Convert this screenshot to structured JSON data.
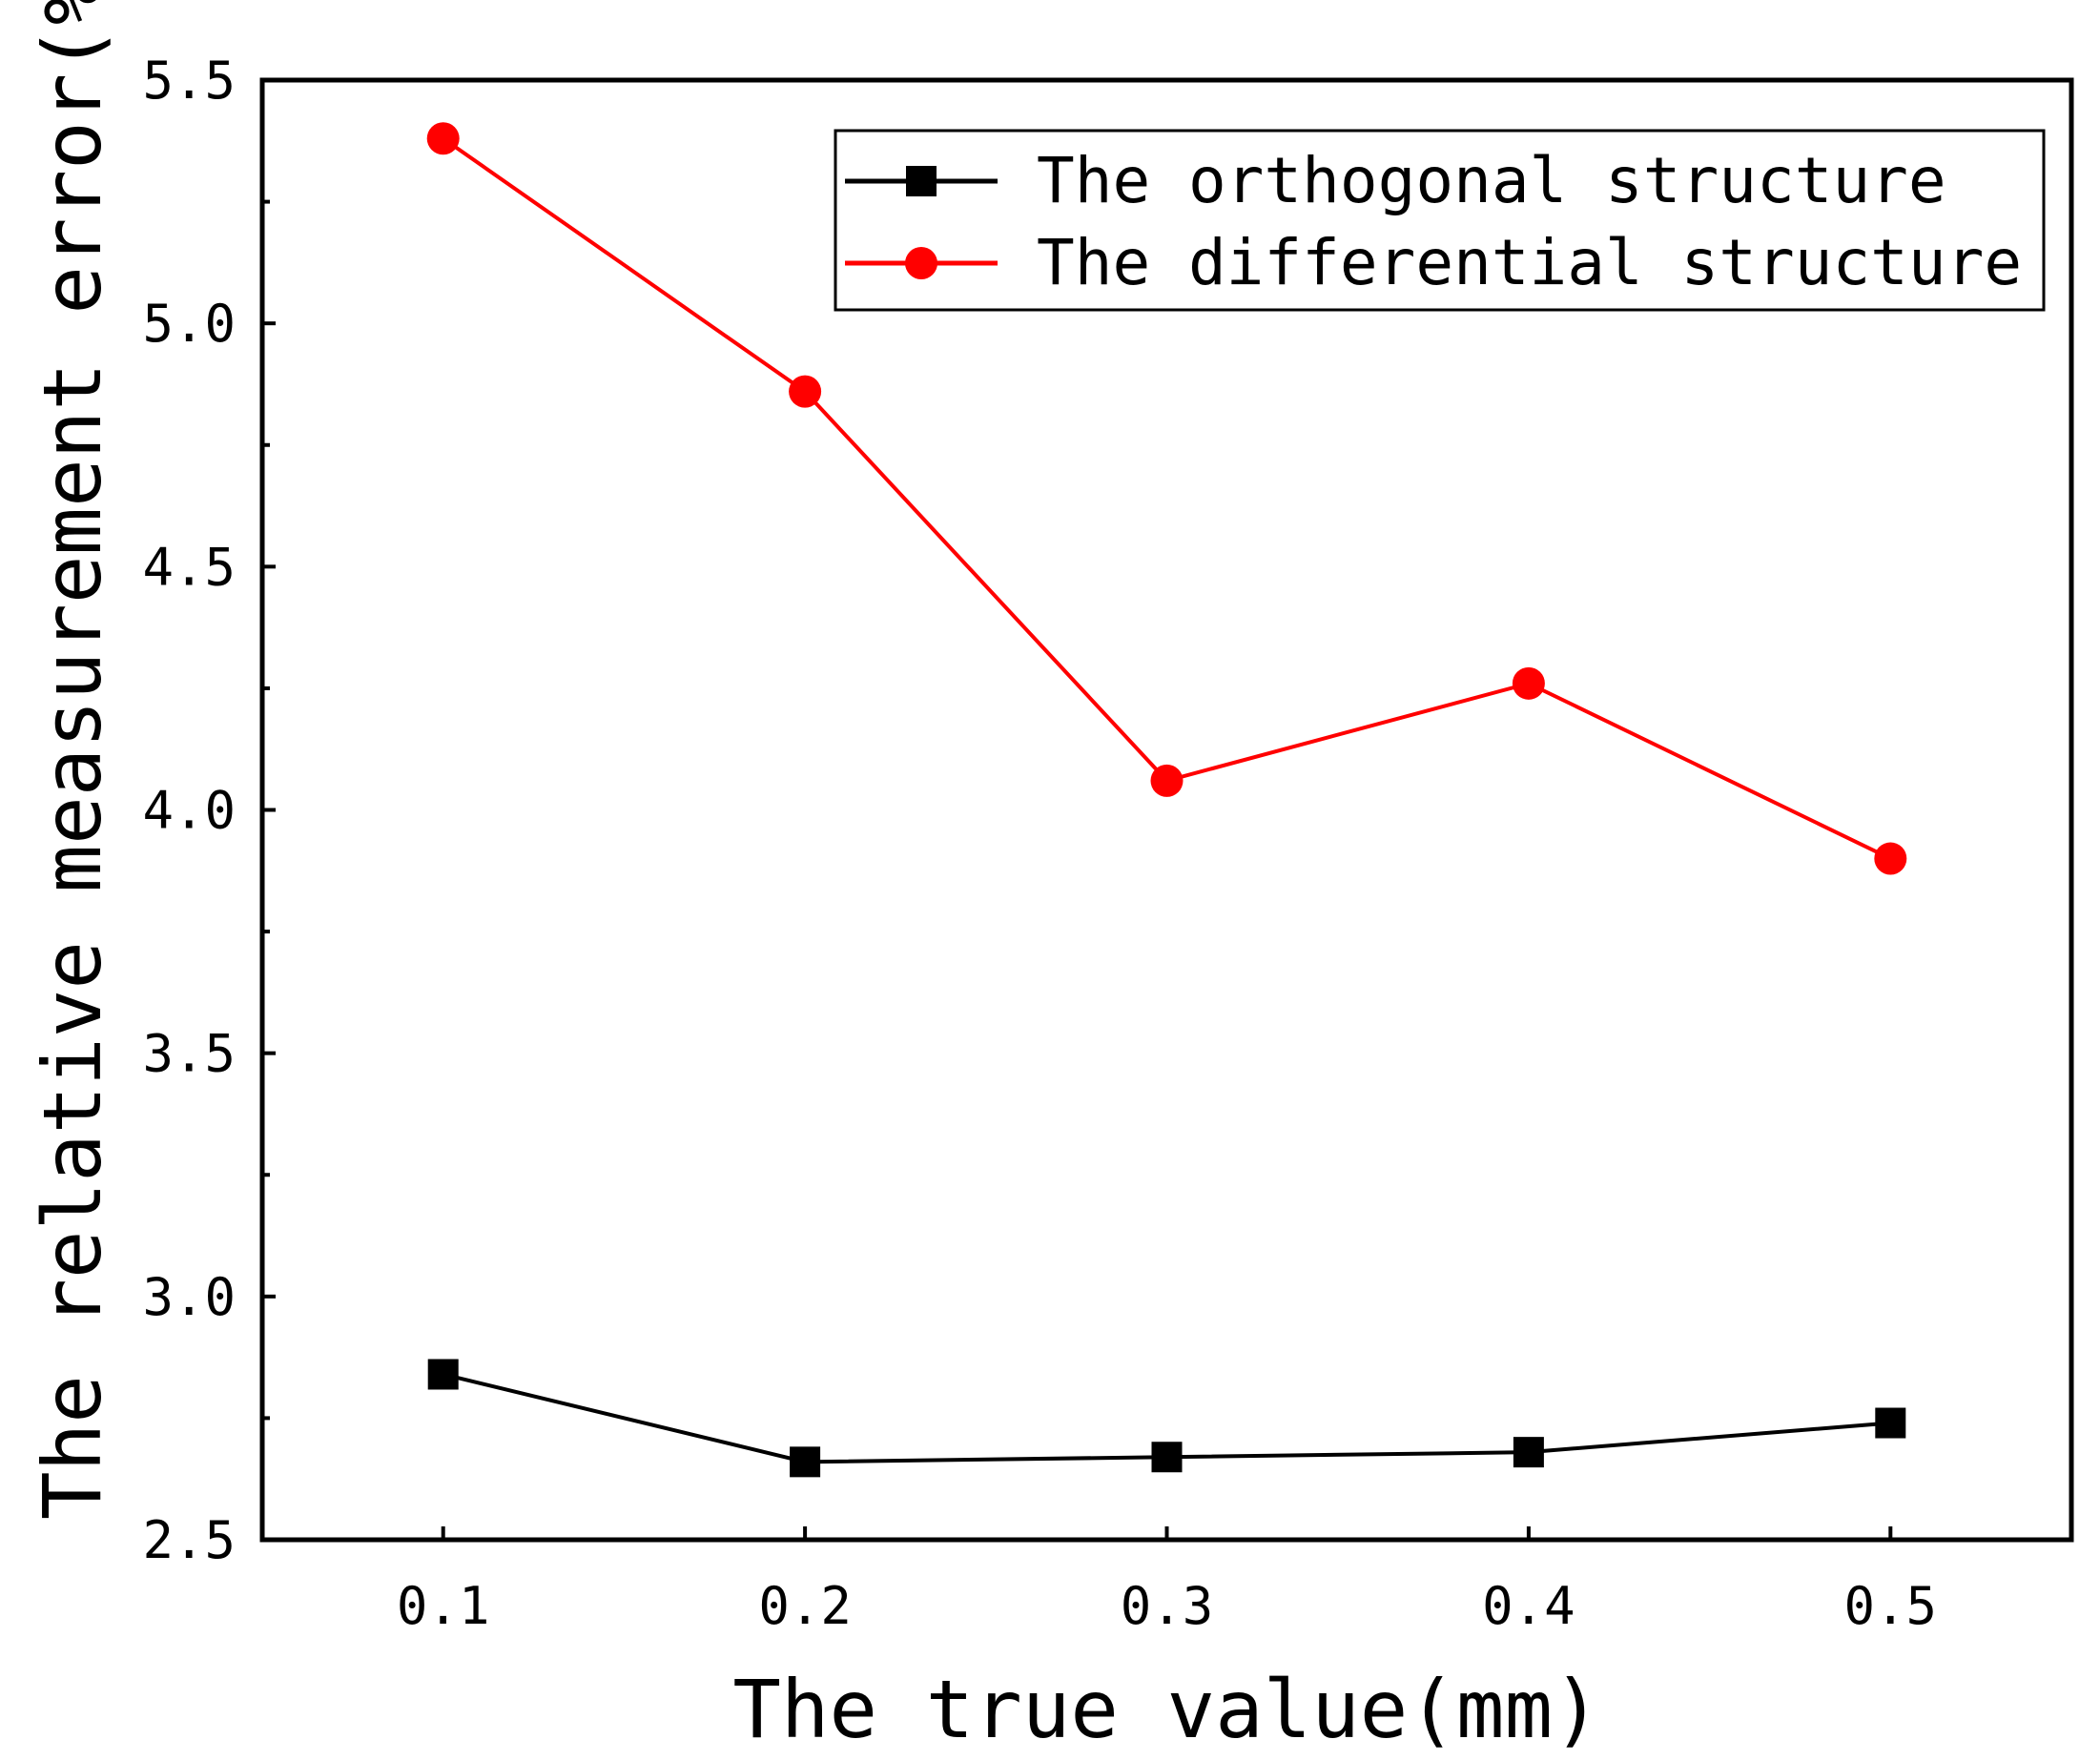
{
  "chart_data": {
    "type": "line",
    "title": "",
    "xlabel": "The true value(mm)",
    "ylabel": "The relative measurement error(%)",
    "x": [
      0.1,
      0.2,
      0.3,
      0.4,
      0.5
    ],
    "x_tick_labels": [
      "0.1",
      "0.2",
      "0.3",
      "0.4",
      "0.5"
    ],
    "xlim": [
      0.05,
      0.55
    ],
    "ylim": [
      2.5,
      5.5
    ],
    "y_ticks": [
      2.5,
      3.0,
      3.5,
      4.0,
      4.5,
      5.0,
      5.5
    ],
    "y_tick_labels": [
      "2.5",
      "3.0",
      "3.5",
      "4.0",
      "4.5",
      "5.0",
      "5.5"
    ],
    "grid": false,
    "legend_position": "top-right",
    "series": [
      {
        "name": "The orthogonal structure",
        "color": "#000000",
        "marker": "square",
        "values": [
          2.84,
          2.66,
          2.67,
          2.68,
          2.74
        ]
      },
      {
        "name": "The differential structure",
        "color": "#ff0000",
        "marker": "circle",
        "values": [
          5.38,
          4.86,
          4.06,
          4.26,
          3.9
        ]
      }
    ]
  }
}
